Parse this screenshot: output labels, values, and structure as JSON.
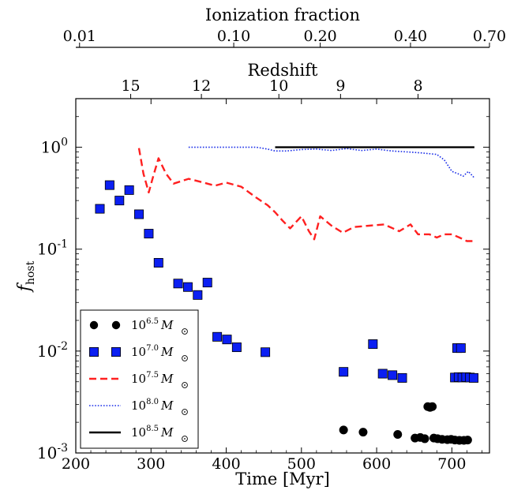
{
  "chart_data": {
    "type": "scatter",
    "title": "",
    "xlabel": "Time [Myr]",
    "ylabel_main": "f",
    "ylabel_sub": "host",
    "xlim": [
      200,
      750
    ],
    "ylim": [
      0.001,
      3
    ],
    "yscale": "log",
    "x_ticks": [
      200,
      300,
      400,
      500,
      600,
      700
    ],
    "x_tick_labels": [
      "200",
      "300",
      "400",
      "500",
      "600",
      "700"
    ],
    "y_ticks": [
      0.001,
      0.01,
      0.1,
      1
    ],
    "y_tick_labels": [
      {
        "base": "10",
        "exp": "-3"
      },
      {
        "base": "10",
        "exp": "-2"
      },
      {
        "base": "10",
        "exp": "-1"
      },
      {
        "base": "10",
        "exp": "0"
      }
    ],
    "redshift_axis": {
      "label": "Redshift",
      "ticks": [
        {
          "label": "15",
          "t": 273
        },
        {
          "label": "12",
          "t": 367
        },
        {
          "label": "10",
          "t": 470
        },
        {
          "label": "9",
          "t": 552
        },
        {
          "label": "8",
          "t": 655
        }
      ]
    },
    "ionization_axis": {
      "label": "Ionization fraction",
      "ticks": [
        {
          "label": "0.01",
          "t": 205
        },
        {
          "label": "0.10",
          "t": 410
        },
        {
          "label": "0.20",
          "t": 525
        },
        {
          "label": "0.40",
          "t": 645
        },
        {
          "label": "0.70",
          "t": 750
        }
      ]
    },
    "legend_position": "lower-left",
    "series": [
      {
        "name": "10^6.5 M_sun",
        "legend_base": "10",
        "legend_exp": "6.5",
        "legend_unit": "M",
        "style": "circle",
        "color": "#000000",
        "points": [
          [
            556,
            0.00168
          ],
          [
            582,
            0.0016
          ],
          [
            628,
            0.00152
          ],
          [
            651,
            0.0014
          ],
          [
            658,
            0.00142
          ],
          [
            664,
            0.00138
          ],
          [
            668,
            0.00285
          ],
          [
            671,
            0.0028
          ],
          [
            674,
            0.00285
          ],
          [
            676,
            0.0014
          ],
          [
            681,
            0.00138
          ],
          [
            687,
            0.00136
          ],
          [
            694,
            0.00135
          ],
          [
            699,
            0.00136
          ],
          [
            704,
            0.00134
          ],
          [
            710,
            0.00133
          ],
          [
            716,
            0.00133
          ],
          [
            721,
            0.00134
          ]
        ]
      },
      {
        "name": "10^7.0 M_sun",
        "legend_base": "10",
        "legend_exp": "7.0",
        "legend_unit": "M",
        "style": "square",
        "color": "#0b1ff2",
        "points": [
          [
            232,
            0.249
          ],
          [
            245,
            0.425
          ],
          [
            258,
            0.3
          ],
          [
            271,
            0.38
          ],
          [
            284,
            0.22
          ],
          [
            297,
            0.142
          ],
          [
            310,
            0.0735
          ],
          [
            336,
            0.046
          ],
          [
            349,
            0.0425
          ],
          [
            362,
            0.0355
          ],
          [
            375,
            0.047
          ],
          [
            388,
            0.0138
          ],
          [
            401,
            0.013
          ],
          [
            414,
            0.0109
          ],
          [
            452,
            0.00975
          ],
          [
            556,
            0.00625
          ],
          [
            595,
            0.0117
          ],
          [
            608,
            0.006
          ],
          [
            621,
            0.0058
          ],
          [
            634,
            0.00545
          ],
          [
            707,
            0.0107
          ],
          [
            712,
            0.0107
          ],
          [
            704,
            0.0055
          ],
          [
            709,
            0.00555
          ],
          [
            714,
            0.0055
          ],
          [
            719,
            0.00555
          ],
          [
            724,
            0.0055
          ],
          [
            729,
            0.00545
          ]
        ]
      },
      {
        "name": "10^7.5 M_sun",
        "legend_base": "10",
        "legend_exp": "7.5",
        "legend_unit": "M",
        "style": "dashed",
        "color": "#ff2020",
        "points": [
          [
            284,
            0.98
          ],
          [
            290,
            0.55
          ],
          [
            297,
            0.36
          ],
          [
            303,
            0.52
          ],
          [
            310,
            0.78
          ],
          [
            320,
            0.55
          ],
          [
            330,
            0.44
          ],
          [
            350,
            0.49
          ],
          [
            370,
            0.45
          ],
          [
            385,
            0.42
          ],
          [
            400,
            0.45
          ],
          [
            420,
            0.41
          ],
          [
            440,
            0.32
          ],
          [
            455,
            0.27
          ],
          [
            465,
            0.23
          ],
          [
            475,
            0.19
          ],
          [
            485,
            0.16
          ],
          [
            500,
            0.21
          ],
          [
            510,
            0.15
          ],
          [
            517,
            0.125
          ],
          [
            525,
            0.21
          ],
          [
            540,
            0.17
          ],
          [
            555,
            0.145
          ],
          [
            570,
            0.165
          ],
          [
            590,
            0.17
          ],
          [
            610,
            0.175
          ],
          [
            630,
            0.15
          ],
          [
            645,
            0.175
          ],
          [
            655,
            0.14
          ],
          [
            670,
            0.14
          ],
          [
            680,
            0.13
          ],
          [
            690,
            0.14
          ],
          [
            700,
            0.14
          ],
          [
            710,
            0.13
          ],
          [
            720,
            0.12
          ],
          [
            730,
            0.12
          ]
        ]
      },
      {
        "name": "10^8.0 M_sun",
        "legend_base": "10",
        "legend_exp": "8.0",
        "legend_unit": "M",
        "style": "dotted",
        "color": "#1a2ee8",
        "points": [
          [
            350,
            1.0
          ],
          [
            440,
            1.0
          ],
          [
            455,
            0.96
          ],
          [
            465,
            0.92
          ],
          [
            480,
            0.92
          ],
          [
            500,
            0.95
          ],
          [
            520,
            0.96
          ],
          [
            540,
            0.93
          ],
          [
            560,
            0.97
          ],
          [
            580,
            0.93
          ],
          [
            600,
            0.96
          ],
          [
            620,
            0.92
          ],
          [
            640,
            0.9
          ],
          [
            660,
            0.88
          ],
          [
            680,
            0.85
          ],
          [
            690,
            0.75
          ],
          [
            700,
            0.58
          ],
          [
            708,
            0.55
          ],
          [
            715,
            0.52
          ],
          [
            722,
            0.58
          ],
          [
            730,
            0.5
          ]
        ]
      },
      {
        "name": "10^8.5 M_sun",
        "legend_base": "10",
        "legend_exp": "8.5",
        "legend_unit": "M",
        "style": "solid",
        "color": "#000000",
        "points": [
          [
            465,
            1.0
          ],
          [
            730,
            1.0
          ]
        ]
      }
    ]
  }
}
